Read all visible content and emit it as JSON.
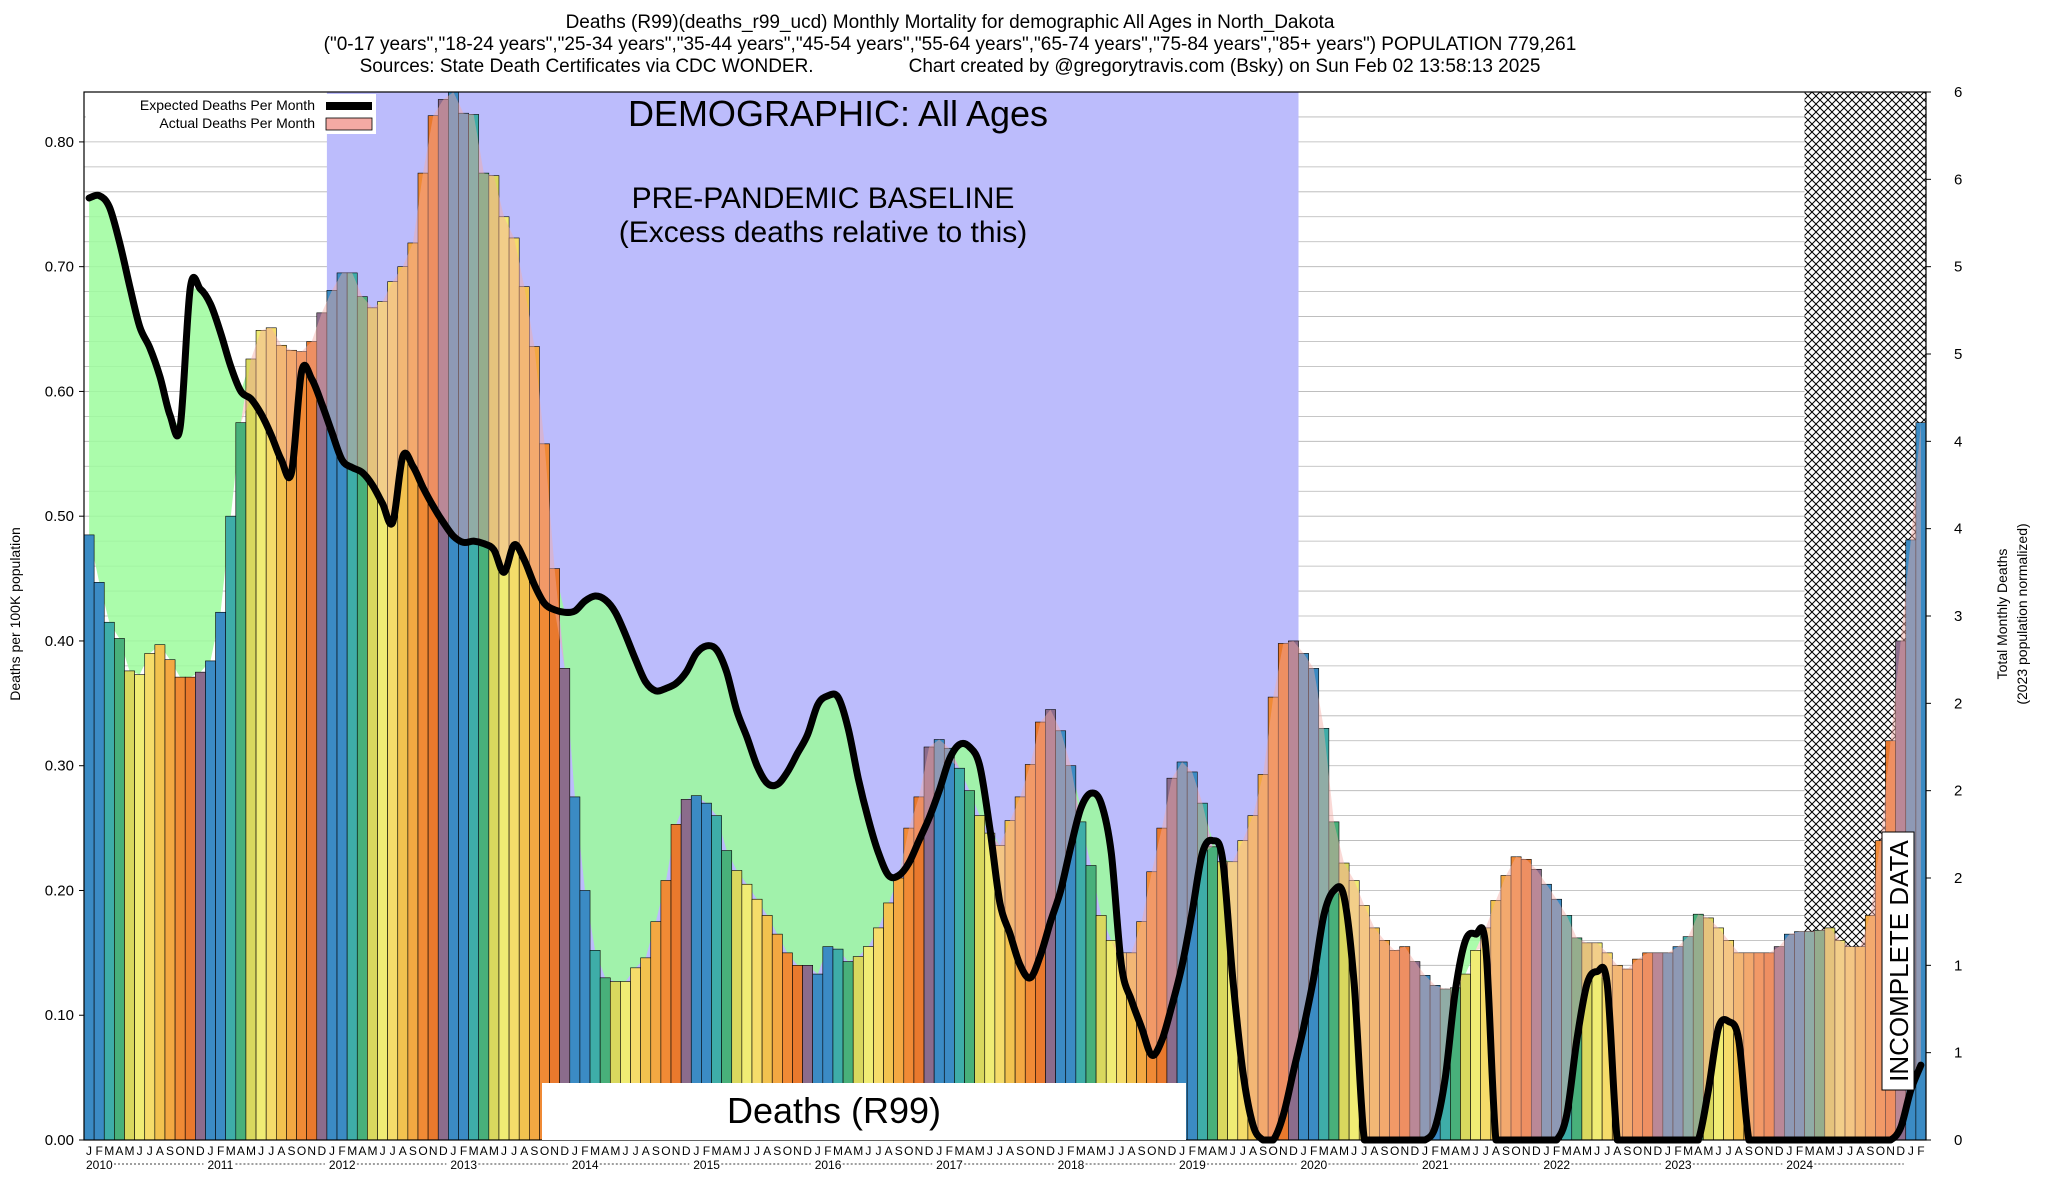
{
  "header": {
    "line1": "Deaths (R99)(deaths_r99_ucd) Monthly Mortality for demographic All Ages in North_Dakota",
    "line2": "(\"0-17 years\",\"18-24 years\",\"25-34 years\",\"35-44 years\",\"45-54 years\",\"55-64 years\",\"65-74 years\",\"75-84 years\",\"85+ years\") POPULATION 779,261",
    "line3a": "Sources: State Death Certificates via CDC WONDER.",
    "line3b": "Chart created by @gregorytravis.com (Bsky) on Sun Feb 02 13:58:13 2025"
  },
  "annotations": {
    "demographic": "DEMOGRAPHIC: All Ages",
    "baseline_line1": "PRE-PANDEMIC BASELINE",
    "baseline_line2": "(Excess deaths relative to this)",
    "cause": "Deaths (R99)",
    "incomplete": "INCOMPLETE DATA"
  },
  "legend": {
    "expected": "Expected Deaths Per Month",
    "actual": "Actual Deaths Per Month"
  },
  "colors": {
    "baseline_band": "#bcbcfc",
    "expected_line": "#000000",
    "actual_fill": "#f4aaa4",
    "below_expected_fill": "#9cfc9c",
    "incomplete_hatch": "#000000"
  },
  "chart_data": {
    "type": "bar",
    "title": "Deaths (R99)(deaths_r99_ucd) Monthly Mortality for demographic All Ages in North_Dakota",
    "ylabel": "Deaths per 100K population",
    "y2label_line1": "Total Monthly Deaths",
    "y2label_line2": "(2023 population normalized)",
    "ylim": [
      0,
      0.84
    ],
    "y2lim": [
      0,
      6
    ],
    "yticks": [
      "0.00",
      "0.10",
      "0.20",
      "0.30",
      "0.40",
      "0.50",
      "0.60",
      "0.70",
      "0.80"
    ],
    "y2ticks": [
      {
        "v": 0,
        "label": "0"
      },
      {
        "v": 0.5,
        "label": "1"
      },
      {
        "v": 1,
        "label": "1"
      },
      {
        "v": 1.5,
        "label": "2"
      },
      {
        "v": 2,
        "label": "2"
      },
      {
        "v": 2.5,
        "label": "2"
      },
      {
        "v": 3,
        "label": "3"
      },
      {
        "v": 3.5,
        "label": "4"
      },
      {
        "v": 4,
        "label": "4"
      },
      {
        "v": 4.5,
        "label": "5"
      },
      {
        "v": 5,
        "label": "5"
      },
      {
        "v": 5.5,
        "label": "6"
      },
      {
        "v": 6,
        "label": "6"
      }
    ],
    "years": [
      "2010",
      "2011",
      "2012",
      "2013",
      "2014",
      "2015",
      "2016",
      "2017",
      "2018",
      "2019",
      "2020",
      "2021",
      "2022",
      "2023",
      "2024"
    ],
    "month_letters": [
      "J",
      "F",
      "M",
      "A",
      "M",
      "J",
      "J",
      "A",
      "S",
      "O",
      "N",
      "D"
    ],
    "baseline_period": {
      "start_index": 24,
      "end_index": 120
    },
    "incomplete_from_index": 170,
    "grid": true,
    "legend_position": "top-left",
    "series": [
      {
        "name": "Actual Deaths Per Month",
        "values": [
          0.485,
          0.447,
          0.415,
          0.402,
          0.376,
          0.373,
          0.39,
          0.397,
          0.385,
          0.371,
          0.371,
          0.375,
          0.384,
          0.423,
          0.5,
          0.575,
          0.626,
          0.649,
          0.651,
          0.637,
          0.633,
          0.632,
          0.64,
          0.663,
          0.681,
          0.695,
          0.695,
          0.676,
          0.667,
          0.672,
          0.688,
          0.7,
          0.719,
          0.775,
          0.821,
          0.834,
          0.84,
          0.823,
          0.822,
          0.775,
          0.773,
          0.74,
          0.723,
          0.684,
          0.636,
          0.558,
          0.458,
          0.378,
          0.275,
          0.2,
          0.152,
          0.13,
          0.127,
          0.127,
          0.138,
          0.146,
          0.175,
          0.208,
          0.253,
          0.273,
          0.276,
          0.27,
          0.26,
          0.232,
          0.216,
          0.205,
          0.193,
          0.18,
          0.165,
          0.15,
          0.14,
          0.14,
          0.133,
          0.155,
          0.153,
          0.143,
          0.147,
          0.155,
          0.17,
          0.19,
          0.21,
          0.25,
          0.275,
          0.315,
          0.321,
          0.314,
          0.298,
          0.28,
          0.26,
          0.246,
          0.236,
          0.256,
          0.275,
          0.301,
          0.335,
          0.345,
          0.328,
          0.3,
          0.255,
          0.22,
          0.18,
          0.16,
          0.15,
          0.15,
          0.175,
          0.215,
          0.25,
          0.29,
          0.303,
          0.295,
          0.27,
          0.235,
          0.223,
          0.223,
          0.24,
          0.26,
          0.293,
          0.355,
          0.398,
          0.4,
          0.39,
          0.378,
          0.33,
          0.255,
          0.222,
          0.208,
          0.188,
          0.17,
          0.16,
          0.152,
          0.155,
          0.143,
          0.132,
          0.124,
          0.121,
          0.122,
          0.133,
          0.152,
          0.17,
          0.192,
          0.212,
          0.227,
          0.225,
          0.217,
          0.205,
          0.193,
          0.18,
          0.162,
          0.158,
          0.158,
          0.15,
          0.14,
          0.137,
          0.145,
          0.15,
          0.15,
          0.15,
          0.155,
          0.163,
          0.181,
          0.178,
          0.17,
          0.16,
          0.15,
          0.15,
          0.15,
          0.15,
          0.155,
          0.165,
          0.167,
          0.167,
          0.168,
          0.17,
          0.16,
          0.155,
          0.155,
          0.18,
          0.24,
          0.32,
          0.4,
          0.481,
          0.575
        ]
      },
      {
        "name": "Expected Deaths Per Month",
        "values": [
          0.755,
          0.757,
          0.748,
          0.72,
          0.685,
          0.652,
          0.635,
          0.612,
          0.581,
          0.571,
          0.683,
          0.682,
          0.67,
          0.647,
          0.62,
          0.6,
          0.594,
          0.582,
          0.565,
          0.545,
          0.535,
          0.616,
          0.61,
          0.59,
          0.567,
          0.545,
          0.539,
          0.535,
          0.525,
          0.51,
          0.495,
          0.548,
          0.54,
          0.523,
          0.508,
          0.495,
          0.484,
          0.479,
          0.48,
          0.478,
          0.473,
          0.455,
          0.477,
          0.465,
          0.445,
          0.43,
          0.425,
          0.423,
          0.424,
          0.432,
          0.436,
          0.433,
          0.423,
          0.405,
          0.385,
          0.367,
          0.36,
          0.362,
          0.366,
          0.375,
          0.39,
          0.396,
          0.393,
          0.375,
          0.344,
          0.323,
          0.3,
          0.286,
          0.285,
          0.295,
          0.31,
          0.325,
          0.349,
          0.356,
          0.355,
          0.33,
          0.29,
          0.257,
          0.23,
          0.212,
          0.212,
          0.222,
          0.24,
          0.258,
          0.28,
          0.305,
          0.317,
          0.315,
          0.3,
          0.25,
          0.19,
          0.165,
          0.14,
          0.13,
          0.148,
          0.175,
          0.2,
          0.235,
          0.266,
          0.278,
          0.27,
          0.23,
          0.14,
          0.112,
          0.09,
          0.068,
          0.08,
          0.108,
          0.14,
          0.183,
          0.23,
          0.24,
          0.225,
          0.13,
          0.055,
          0.012,
          0.0,
          0.0,
          0.02,
          0.055,
          0.09,
          0.13,
          0.18,
          0.2,
          0.195,
          0.125,
          0.0,
          0.0,
          0.0,
          0.0,
          0.0,
          0.0,
          0.0,
          0.01,
          0.05,
          0.12,
          0.16,
          0.165,
          0.155,
          0.0,
          0.0,
          0.0,
          0.0,
          0.0,
          0.0,
          0.0,
          0.02,
          0.08,
          0.125,
          0.135,
          0.125,
          0.0,
          0.0,
          0.0,
          0.0,
          0.0,
          0.0,
          0.0,
          0.0,
          0.0,
          0.04,
          0.09,
          0.095,
          0.08,
          0.0,
          0.0,
          0.0,
          0.0,
          0.0,
          0.0,
          0.0,
          0.0,
          0.0,
          0.0,
          0.0,
          0.0,
          0.0,
          0.0,
          0.0,
          0.01,
          0.04,
          0.06
        ]
      }
    ]
  }
}
